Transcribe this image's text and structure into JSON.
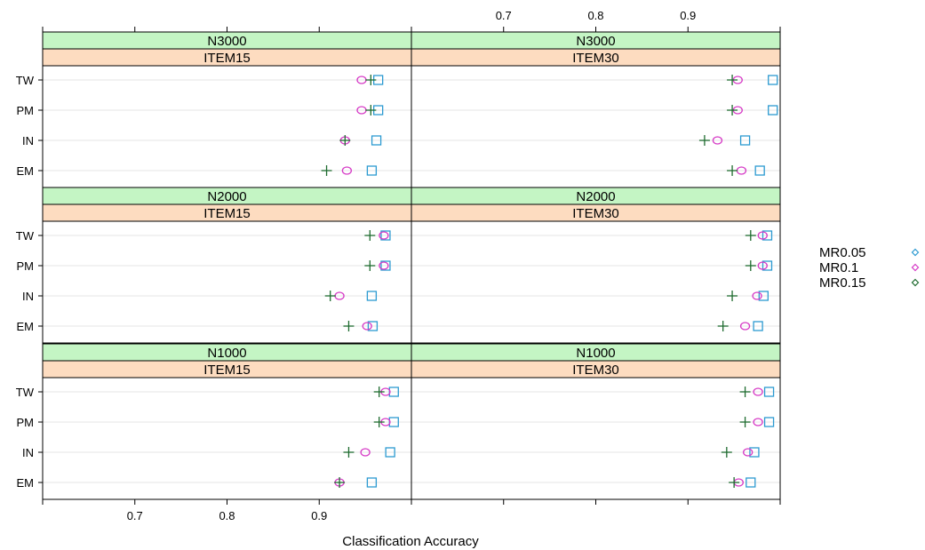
{
  "chart_data": {
    "type": "scatter",
    "xlabel": "Classification Accuracy",
    "xlim": [
      0.6,
      1.0
    ],
    "x_ticks": [
      0.7,
      0.8,
      0.9
    ],
    "x_tick_labels": [
      "0.7",
      "0.8",
      "0.9"
    ],
    "categories": [
      "TW",
      "PM",
      "IN",
      "EM"
    ],
    "grid": true,
    "legend_position": "right",
    "series": [
      {
        "name": "MR0.05",
        "color": "#2C9AD1",
        "symbol": "square"
      },
      {
        "name": "MR0.1",
        "color": "#D63AC6",
        "symbol": "circle"
      },
      {
        "name": "MR0.15",
        "color": "#1E6B2F",
        "symbol": "plus"
      }
    ],
    "panels": [
      {
        "strip_top": "N3000",
        "strip_bottom": "ITEM15",
        "values": {
          "TW": [
            0.964,
            0.946,
            0.956
          ],
          "PM": [
            0.964,
            0.946,
            0.956
          ],
          "IN": [
            0.962,
            0.928,
            0.928
          ],
          "EM": [
            0.957,
            0.93,
            0.908
          ]
        }
      },
      {
        "strip_top": "N3000",
        "strip_bottom": "ITEM30",
        "values": {
          "TW": [
            0.992,
            0.954,
            0.948
          ],
          "PM": [
            0.992,
            0.954,
            0.948
          ],
          "IN": [
            0.962,
            0.932,
            0.918
          ],
          "EM": [
            0.978,
            0.958,
            0.948
          ]
        }
      },
      {
        "strip_top": "N2000",
        "strip_bottom": "ITEM15",
        "values": {
          "TW": [
            0.972,
            0.97,
            0.955
          ],
          "PM": [
            0.972,
            0.97,
            0.955
          ],
          "IN": [
            0.957,
            0.922,
            0.912
          ],
          "EM": [
            0.958,
            0.952,
            0.932
          ]
        }
      },
      {
        "strip_top": "N2000",
        "strip_bottom": "ITEM30",
        "values": {
          "TW": [
            0.986,
            0.981,
            0.968
          ],
          "PM": [
            0.986,
            0.981,
            0.968
          ],
          "IN": [
            0.982,
            0.975,
            0.948
          ],
          "EM": [
            0.976,
            0.962,
            0.938
          ]
        }
      },
      {
        "strip_top": "N1000",
        "strip_bottom": "ITEM15",
        "values": {
          "TW": [
            0.981,
            0.972,
            0.965
          ],
          "PM": [
            0.981,
            0.972,
            0.965
          ],
          "IN": [
            0.977,
            0.95,
            0.932
          ],
          "EM": [
            0.957,
            0.922,
            0.922
          ]
        }
      },
      {
        "strip_top": "N1000",
        "strip_bottom": "ITEM30",
        "values": {
          "TW": [
            0.988,
            0.976,
            0.962
          ],
          "PM": [
            0.988,
            0.976,
            0.962
          ],
          "IN": [
            0.972,
            0.965,
            0.942
          ],
          "EM": [
            0.968,
            0.955,
            0.95
          ]
        }
      }
    ]
  }
}
